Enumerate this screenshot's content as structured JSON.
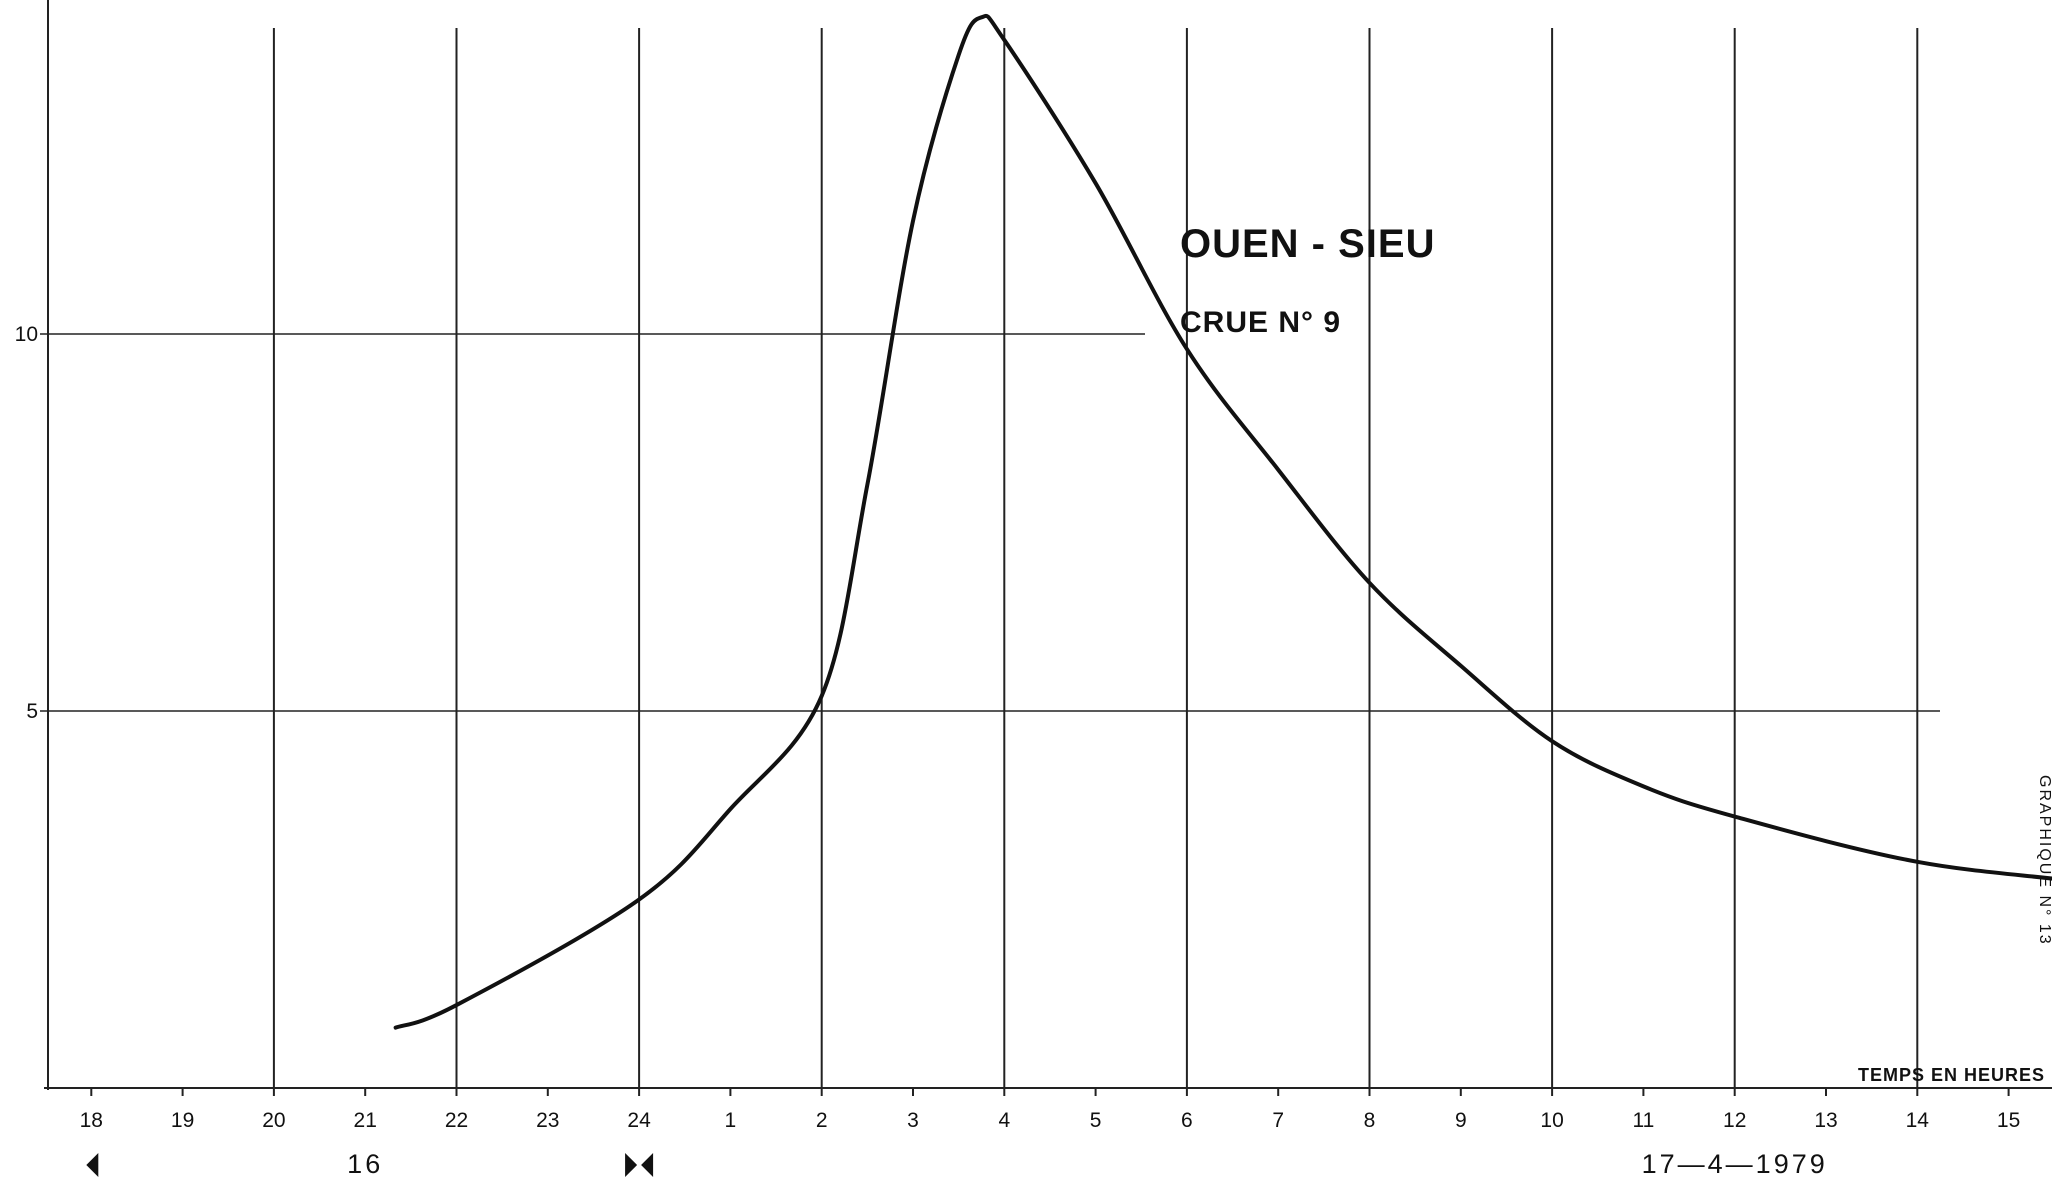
{
  "chart_data": {
    "type": "line",
    "title": "OUEN - SIEU",
    "subtitle": "CRUE  N° 9",
    "xlabel": "TEMPS  EN  HEURES",
    "ylabel": "",
    "y_ticks": [
      "5",
      "10"
    ],
    "ylim": [
      0,
      14.4
    ],
    "x_tick_labels": [
      "18",
      "19",
      "20",
      "21",
      "22",
      "23",
      "24",
      "1",
      "2",
      "3",
      "4",
      "5",
      "6",
      "7",
      "8",
      "9",
      "10",
      "11",
      "12",
      "13",
      "14",
      "15",
      "16",
      "17",
      "18",
      "19",
      "20",
      "21",
      "22",
      "23",
      "24",
      "1",
      "2",
      "3",
      "4",
      "5",
      "6",
      "7",
      "8",
      "9",
      "10"
    ],
    "day_labels": [
      "16",
      "17—4—1979",
      "18"
    ],
    "series": [
      {
        "x": [
          "16 21:20",
          "16 22:00",
          "16 24:00",
          "17 01:00",
          "17 02:00",
          "17 02:30",
          "17 03:00",
          "17 03:30",
          "17 03:45",
          "17 04:00",
          "17 05:00",
          "17 06:00",
          "17 07:00",
          "17 08:00",
          "17 09:00",
          "17 10:00",
          "17 11:00",
          "17 12:00",
          "17 14:00",
          "17 16:00",
          "17 18:00",
          "17 20:00",
          "17 22:00",
          "17 24:00",
          "18 02:00",
          "18 04:00",
          "18 06:00",
          "18 08:00",
          "18 10:00",
          "18 11:20"
        ],
        "y": [
          0.8,
          1.1,
          2.5,
          3.7,
          5.2,
          8.0,
          11.5,
          13.7,
          14.2,
          13.9,
          12.0,
          9.8,
          8.2,
          6.7,
          5.6,
          4.6,
          4.0,
          3.6,
          3.0,
          2.7,
          2.3,
          2.0,
          1.7,
          1.5,
          1.3,
          1.15,
          1.05,
          0.95,
          0.87,
          0.82
        ]
      }
    ]
  },
  "side_text": "GRAPHIQUE  N° 13"
}
